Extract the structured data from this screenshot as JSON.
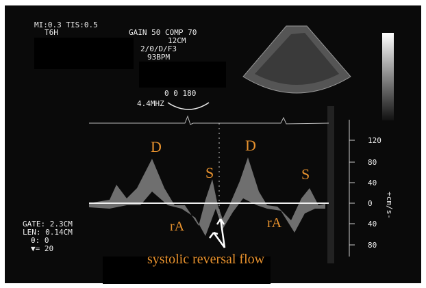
{
  "header": {
    "mi_tis": "MI:0.3 TIS:0.5",
    "probe": "T6H",
    "gain_comp": "GAIN 50 COMP 70",
    "depth": "12CM",
    "mode": "2/0/D/F3",
    "heart_rate": "93BPM",
    "angles": "0   0 180",
    "frequency": "4.4MHZ"
  },
  "scale": {
    "labels": [
      "120",
      "80",
      "40",
      "0",
      "40",
      "80"
    ],
    "unit": "+cm/s-"
  },
  "gate_info": {
    "gate": "GATE:  2.3CM",
    "len": "LEN: 0.14CM",
    "theta": "θ: 0",
    "marker": "▼= 20"
  },
  "annotations": {
    "d1": "D",
    "d2": "D",
    "s1": "S",
    "s2": "S",
    "ra1": "rA",
    "ra2": "rA",
    "caption": "systolic reversal flow"
  }
}
